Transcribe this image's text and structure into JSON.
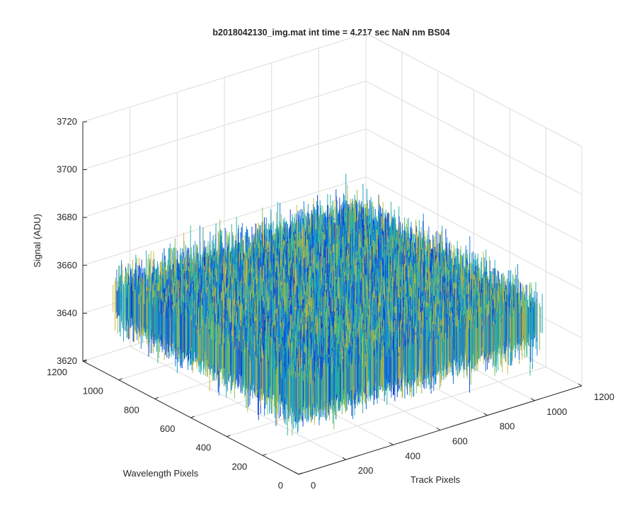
{
  "chart_data": {
    "type": "surface",
    "title": "b2018042130_img.mat int time = 4.217 sec  NaN nm BS04",
    "xlabel": "Track Pixels",
    "ylabel": "Wavelength Pixels",
    "zlabel": "Signal (ADU)",
    "xlim": [
      0,
      1200
    ],
    "ylim": [
      0,
      1200
    ],
    "zlim": [
      3620,
      3720
    ],
    "x_ticks": [
      "0",
      "200",
      "400",
      "600",
      "800",
      "1000",
      "1200"
    ],
    "y_ticks": [
      "0",
      "200",
      "400",
      "600",
      "800",
      "1000",
      "1200"
    ],
    "z_ticks": [
      "3620",
      "3640",
      "3660",
      "3680",
      "3700",
      "3720"
    ],
    "data_extent": {
      "x": [
        0,
        1024
      ],
      "y": [
        0,
        1024
      ]
    },
    "signal_mean": 3652,
    "signal_range": [
      3625,
      3705
    ],
    "colormap": [
      "#0a3fd6",
      "#1273e0",
      "#16a0c8",
      "#2bb49a",
      "#7fbf58",
      "#c9b53c"
    ],
    "grid": true
  }
}
